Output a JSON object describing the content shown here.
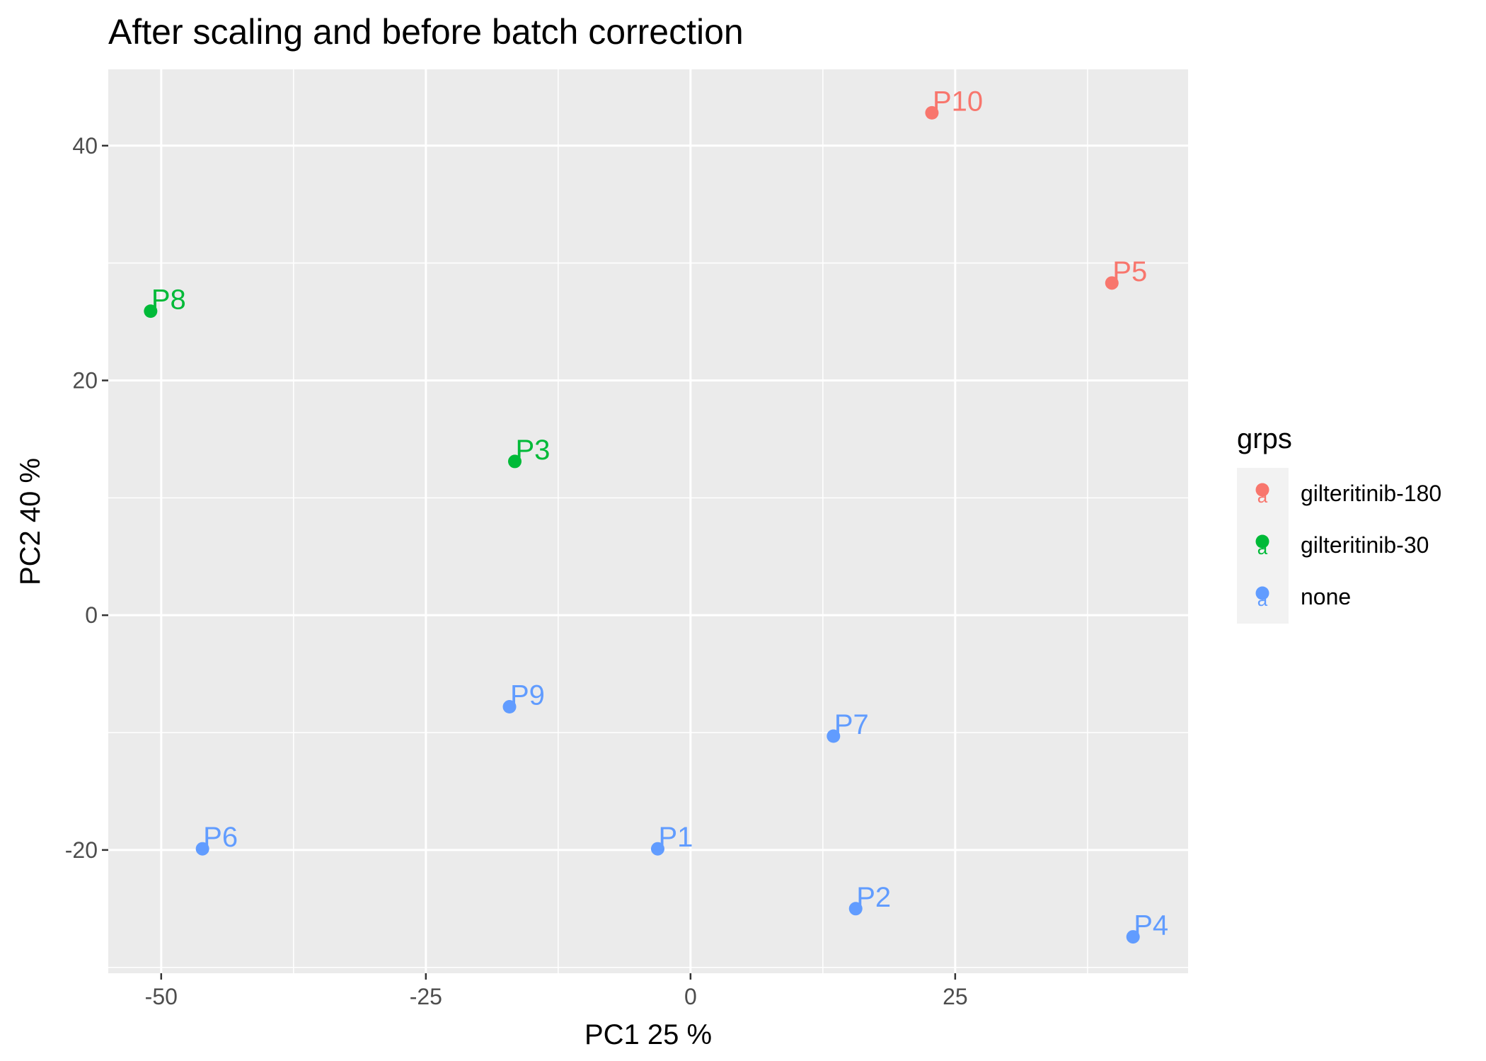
{
  "chart_data": {
    "type": "scatter",
    "title": "After scaling and before batch correction",
    "xlabel": "PC1 25 %",
    "ylabel": "PC2 40 %",
    "xlim": [
      -55,
      47
    ],
    "ylim": [
      -30.5,
      46.5
    ],
    "x_ticks": [
      -50,
      -25,
      0,
      25
    ],
    "y_ticks": [
      -20,
      0,
      20,
      40
    ],
    "x_tick_labels": [
      "-50",
      "-25",
      "0",
      "25"
    ],
    "y_tick_labels": [
      "-20",
      "0",
      "20",
      "40"
    ],
    "grid": true,
    "legend": {
      "title": "grps",
      "position": "right",
      "entries": [
        {
          "label": "gilteritinib-180",
          "color": "#F8766D",
          "key_glyph": "a"
        },
        {
          "label": "gilteritinib-30",
          "color": "#00BA38",
          "key_glyph": "a"
        },
        {
          "label": "none",
          "color": "#619CFF",
          "key_glyph": "a"
        }
      ]
    },
    "series": [
      {
        "name": "gilteritinib-180",
        "color": "#F8766D",
        "points": [
          {
            "label": "P10",
            "x": 22.8,
            "y": 42.8
          },
          {
            "label": "P5",
            "x": 39.8,
            "y": 28.3
          }
        ]
      },
      {
        "name": "gilteritinib-30",
        "color": "#00BA38",
        "points": [
          {
            "label": "P8",
            "x": -51.0,
            "y": 25.9
          },
          {
            "label": "P3",
            "x": -16.6,
            "y": 13.1
          }
        ]
      },
      {
        "name": "none",
        "color": "#619CFF",
        "points": [
          {
            "label": "P9",
            "x": -17.1,
            "y": -7.8
          },
          {
            "label": "P7",
            "x": 13.5,
            "y": -10.3
          },
          {
            "label": "P6",
            "x": -46.1,
            "y": -19.9
          },
          {
            "label": "P1",
            "x": -3.1,
            "y": -19.9
          },
          {
            "label": "P2",
            "x": 15.6,
            "y": -25.0
          },
          {
            "label": "P4",
            "x": 41.8,
            "y": -27.4
          }
        ]
      }
    ]
  }
}
